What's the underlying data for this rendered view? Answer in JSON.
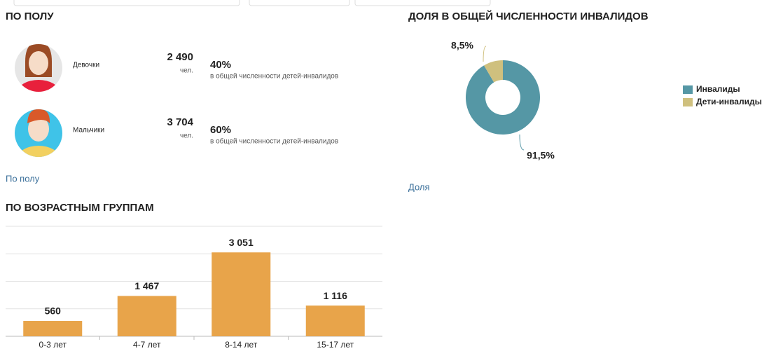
{
  "gender": {
    "title": "ПО ПОЛУ",
    "items": [
      {
        "name": "Девочки",
        "count": "2 490",
        "unit": "чел.",
        "percent": "40%",
        "note": "в общей численности детей-инвалидов"
      },
      {
        "name": "Мальчики",
        "count": "3 704",
        "unit": "чел.",
        "percent": "60%",
        "note": "в общей численности детей-инвалидов"
      }
    ],
    "link": "По полу"
  },
  "share": {
    "title": "ДОЛЯ В ОБЩЕЙ ЧИСЛЕННОСТИ ИНВАЛИДОВ",
    "link": "Доля"
  },
  "age": {
    "title": "ПО ВОЗРАСТНЫМ ГРУППАМ"
  },
  "chart_data": [
    {
      "type": "bar",
      "categories": [
        "0-3 лет",
        "4-7 лет",
        "8-14 лет",
        "15-17 лет"
      ],
      "values": [
        560,
        1467,
        3051,
        1116
      ],
      "value_labels": [
        "560",
        "1 467",
        "3 051",
        "1 116"
      ],
      "color": "#e8a44a",
      "ylim": [
        0,
        4000
      ],
      "yticks": [
        0,
        1000,
        2000,
        3000,
        4000
      ],
      "grid": true
    },
    {
      "type": "donut",
      "categories": [
        "Инвалиды",
        "Дети-инвалиды"
      ],
      "values": [
        91.5,
        8.5
      ],
      "value_labels": [
        "91,5%",
        "8,5%"
      ],
      "colors": [
        "#5597a5",
        "#cfc07e"
      ],
      "legend": "right"
    }
  ]
}
